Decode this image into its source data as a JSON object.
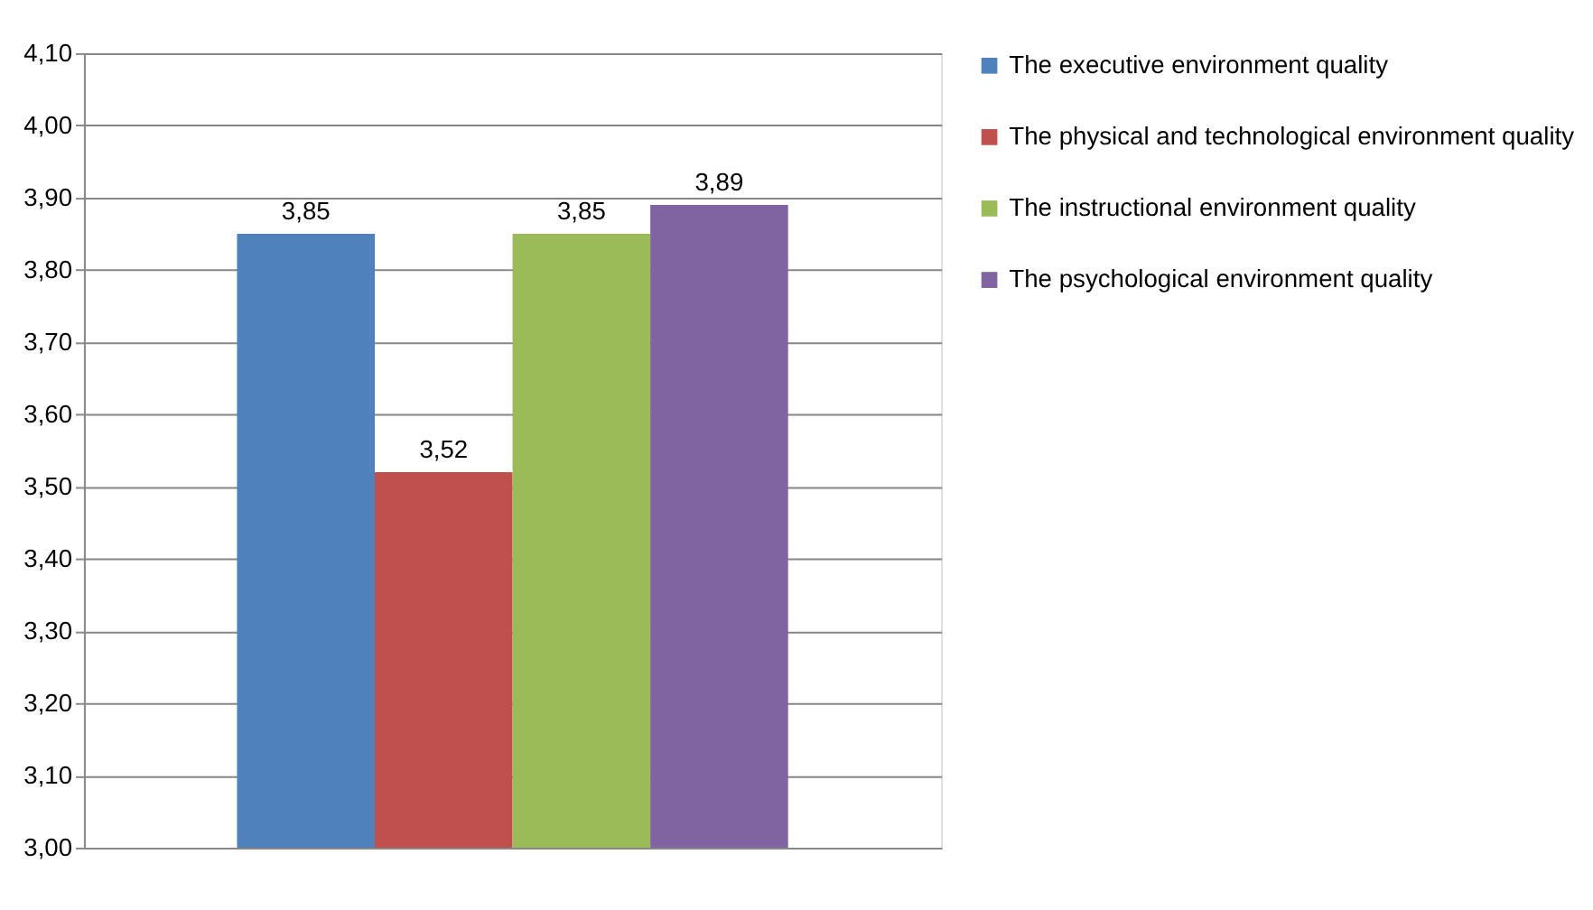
{
  "chart_data": {
    "type": "bar",
    "categories": [
      null
    ],
    "series": [
      {
        "name": "The executive environment quality",
        "color": "#4f81bd",
        "values": [
          3.85
        ],
        "value_labels": [
          "3,85"
        ]
      },
      {
        "name": "The physical and technological environment quality",
        "color": "#c0504d",
        "values": [
          3.52
        ],
        "value_labels": [
          "3,52"
        ]
      },
      {
        "name": "The instructional environment quality",
        "color": "#9bbb59",
        "values": [
          3.85
        ],
        "value_labels": [
          "3,85"
        ]
      },
      {
        "name": "The psychological environment quality",
        "color": "#8064a2",
        "values": [
          3.89
        ],
        "value_labels": [
          "3,89"
        ]
      }
    ],
    "ylim": [
      3.0,
      4.1
    ],
    "yticks": [
      {
        "value": 3.0,
        "label": "3,00"
      },
      {
        "value": 3.1,
        "label": "3,10"
      },
      {
        "value": 3.2,
        "label": "3,20"
      },
      {
        "value": 3.3,
        "label": "3,30"
      },
      {
        "value": 3.4,
        "label": "3,40"
      },
      {
        "value": 3.5,
        "label": "3,50"
      },
      {
        "value": 3.6,
        "label": "3,60"
      },
      {
        "value": 3.7,
        "label": "3,70"
      },
      {
        "value": 3.8,
        "label": "3,80"
      },
      {
        "value": 3.9,
        "label": "3,90"
      },
      {
        "value": 4.0,
        "label": "4,00"
      },
      {
        "value": 4.1,
        "label": "4,10"
      }
    ],
    "grid": "y",
    "legend": "right",
    "tick_labels": "y"
  }
}
